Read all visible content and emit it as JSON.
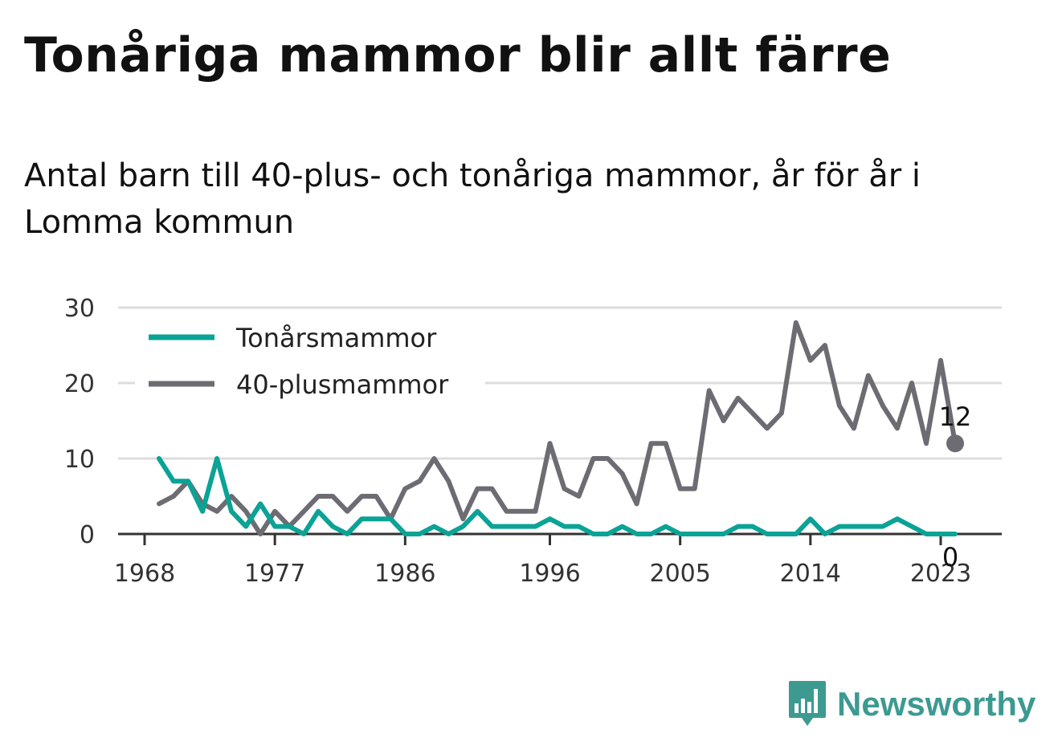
{
  "title": "Tonåriga mammor blir allt färre",
  "subtitle": "Antal barn till 40-plus- och tonåriga mammor, år för år i Lomma kommun",
  "brand": "Newsworthy",
  "colors": {
    "teen": "#0aa396",
    "forty": "#6d6c72",
    "grid": "#dddddd",
    "axis": "#333333",
    "brand": "#3c9a91"
  },
  "chart_data": {
    "type": "line",
    "x": [
      1969,
      1970,
      1971,
      1972,
      1973,
      1974,
      1975,
      1976,
      1977,
      1978,
      1979,
      1980,
      1981,
      1982,
      1983,
      1984,
      1985,
      1986,
      1987,
      1988,
      1989,
      1990,
      1991,
      1992,
      1993,
      1994,
      1995,
      1996,
      1997,
      1998,
      1999,
      2000,
      2001,
      2002,
      2003,
      2004,
      2005,
      2006,
      2007,
      2008,
      2009,
      2010,
      2011,
      2012,
      2013,
      2014,
      2015,
      2016,
      2017,
      2018,
      2019,
      2020,
      2021,
      2022,
      2023,
      2024
    ],
    "series": [
      {
        "name": "Tonårsmammor",
        "color": "#0aa396",
        "values": [
          10,
          7,
          7,
          3,
          10,
          3,
          1,
          4,
          1,
          1,
          0,
          3,
          1,
          0,
          2,
          2,
          2,
          0,
          0,
          1,
          0,
          1,
          3,
          1,
          1,
          1,
          1,
          2,
          1,
          1,
          0,
          0,
          1,
          0,
          0,
          1,
          0,
          0,
          0,
          0,
          1,
          1,
          0,
          0,
          0,
          2,
          0,
          1,
          1,
          1,
          1,
          2,
          1,
          0,
          0,
          0
        ]
      },
      {
        "name": "40-plusmammor",
        "color": "#6d6c72",
        "values": [
          4,
          5,
          7,
          4,
          3,
          5,
          3,
          0,
          3,
          1,
          3,
          5,
          5,
          3,
          5,
          5,
          2,
          6,
          7,
          10,
          7,
          2,
          6,
          6,
          3,
          3,
          3,
          12,
          6,
          5,
          10,
          10,
          8,
          4,
          12,
          12,
          6,
          6,
          19,
          15,
          18,
          16,
          14,
          16,
          28,
          23,
          25,
          17,
          14,
          21,
          17,
          14,
          20,
          12,
          23,
          12
        ]
      }
    ],
    "x_ticks": [
      "1968",
      "1977",
      "1986",
      "1996",
      "2005",
      "2014",
      "2023"
    ],
    "y_ticks": [
      "0",
      "10",
      "20",
      "30"
    ],
    "ylim": [
      0,
      30
    ],
    "xlim": [
      1968,
      2025
    ],
    "grid": true,
    "legend_position": "top-left",
    "end_labels": [
      "0",
      "12"
    ]
  }
}
